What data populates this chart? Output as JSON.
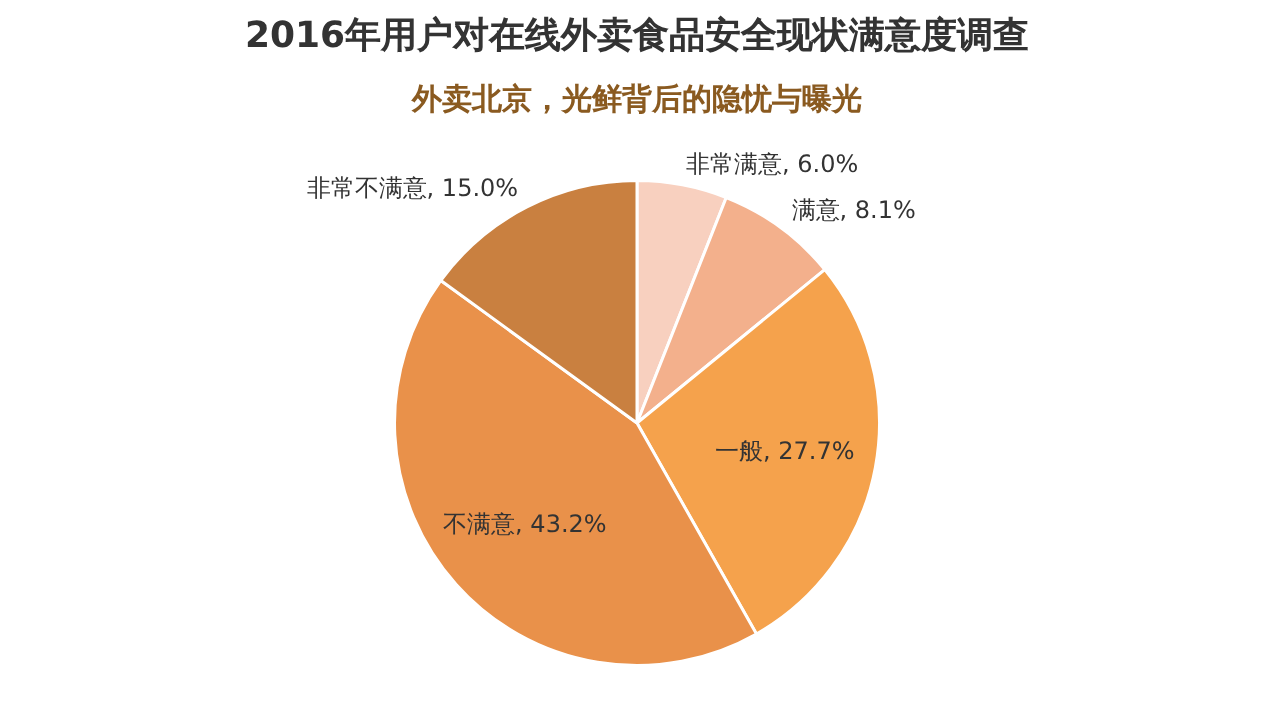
{
  "chart_data": {
    "type": "pie",
    "title": "2016年用户对在线外卖食品安全现状满意度调查",
    "subtitle": "外卖北京，光鲜背后的隐忧与曝光",
    "categories": [
      "非常满意",
      "满意",
      "一般",
      "不满意",
      "非常不满意"
    ],
    "values": [
      6.0,
      8.1,
      27.7,
      43.2,
      15.0
    ],
    "colors": [
      "#f8d0bf",
      "#f3b08c",
      "#f5a24c",
      "#e9914a",
      "#c98040"
    ],
    "value_labels": [
      "6.0%",
      "8.1%",
      "27.7%",
      "43.2%",
      "15.0%"
    ]
  }
}
